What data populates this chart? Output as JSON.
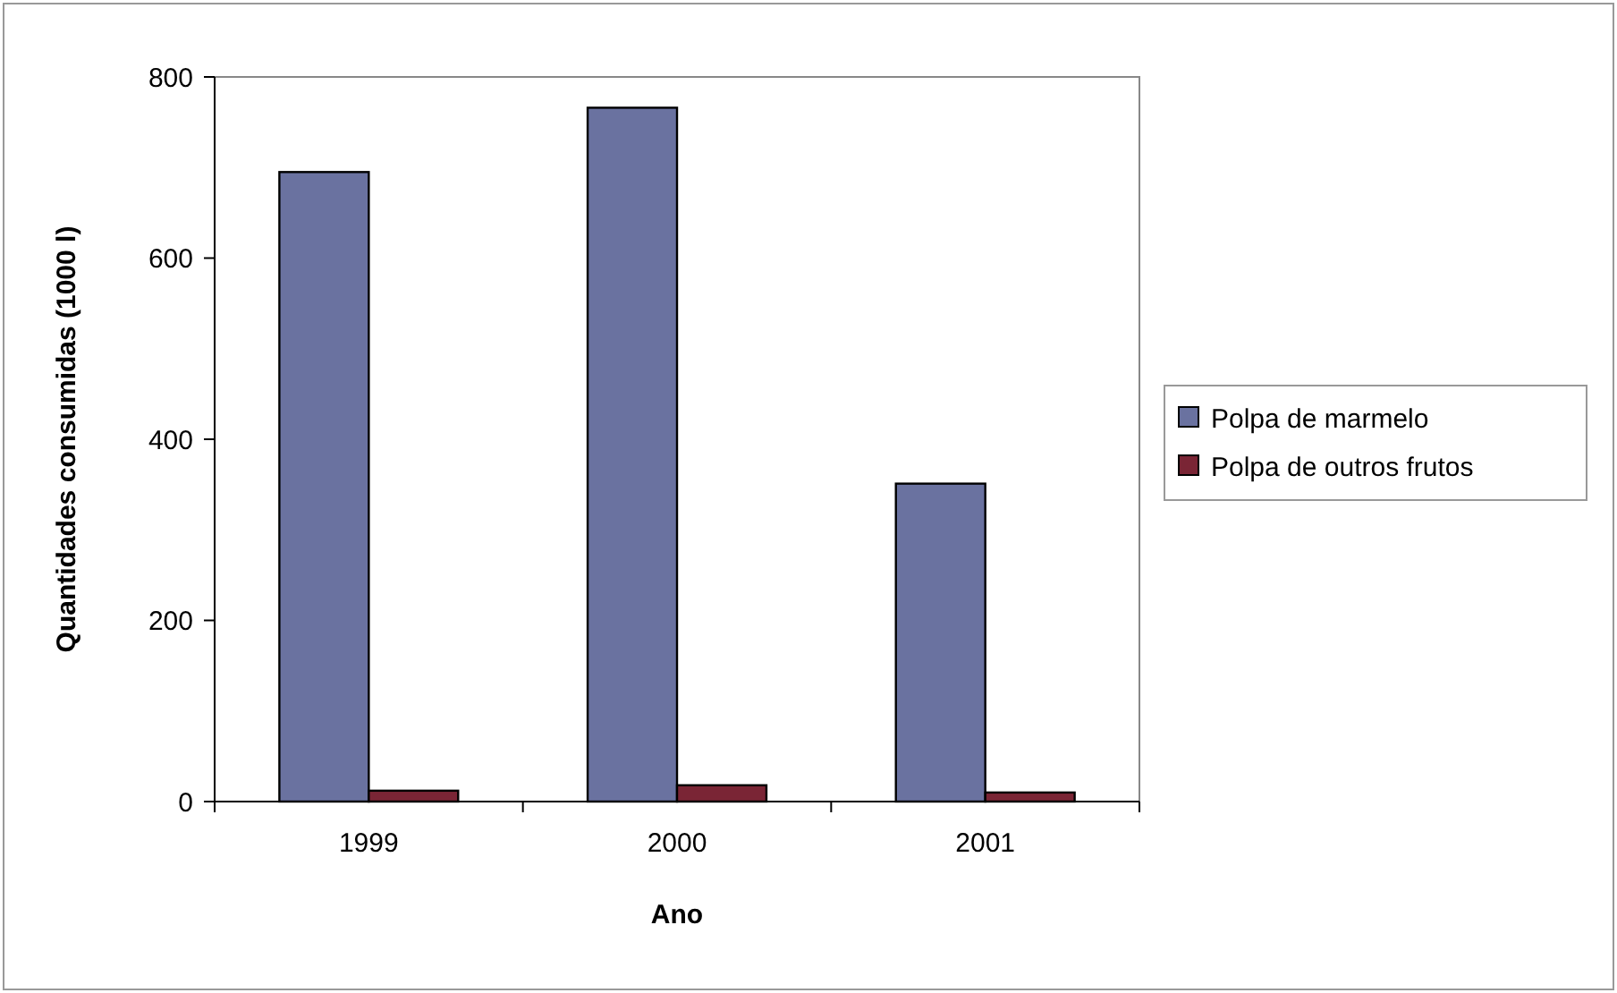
{
  "chart_data": {
    "type": "bar",
    "xlabel": "Ano",
    "ylabel": "Quantidades consumidas (1000 l)",
    "categories": [
      "1999",
      "2000",
      "2001"
    ],
    "series": [
      {
        "name": "Polpa de marmelo",
        "color": "#6a72a0",
        "values": [
          695,
          766,
          351
        ]
      },
      {
        "name": "Polpa de outros frutos",
        "color": "#7a2535",
        "values": [
          12,
          18,
          10
        ]
      }
    ],
    "ylim": [
      0,
      800
    ],
    "yticks": [
      0,
      200,
      400,
      600,
      800
    ],
    "grid": false,
    "legend": "right"
  }
}
